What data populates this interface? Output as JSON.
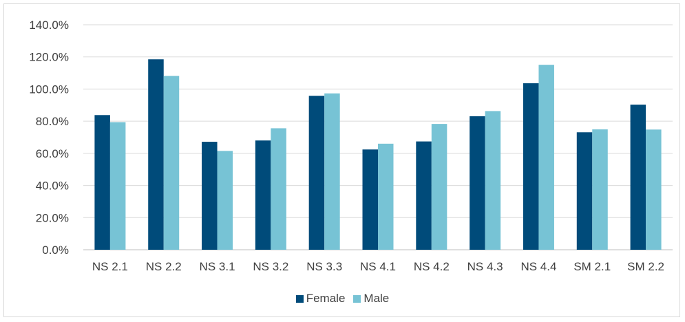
{
  "chart_data": {
    "type": "bar",
    "categories": [
      "NS 2.1",
      "NS 2.2",
      "NS 3.1",
      "NS 3.2",
      "NS 3.3",
      "NS 4.1",
      "NS 4.2",
      "NS 4.3",
      "NS 4.4",
      "SM 2.1",
      "SM 2.2"
    ],
    "series": [
      {
        "name": "Female",
        "color": "#004b7a",
        "values": [
          83.8,
          118.5,
          67.2,
          68.0,
          95.8,
          62.4,
          67.4,
          83.1,
          103.6,
          73.1,
          90.3
        ]
      },
      {
        "name": "Male",
        "color": "#77c3d5",
        "values": [
          79.4,
          108.2,
          61.5,
          75.6,
          97.3,
          66.0,
          78.3,
          86.3,
          115.1,
          74.9,
          74.8
        ]
      }
    ],
    "ylim": [
      0,
      140
    ],
    "yticks": [
      "0.0%",
      "20.0%",
      "40.0%",
      "60.0%",
      "80.0%",
      "100.0%",
      "120.0%",
      "140.0%"
    ],
    "ytick_values": [
      0,
      20,
      40,
      60,
      80,
      100,
      120,
      140
    ],
    "grid": true,
    "legend_position": "bottom",
    "title": "",
    "xlabel": "",
    "ylabel": ""
  }
}
